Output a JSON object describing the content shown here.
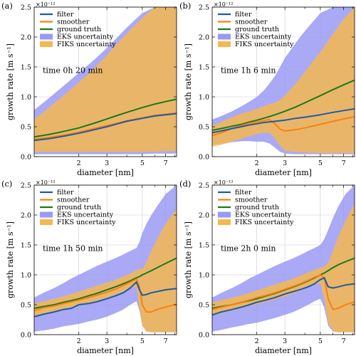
{
  "chart_data": [
    {
      "type": "line",
      "panel_label": "(a)",
      "annotation": "time 0h 20 min",
      "exponent_label": "×10⁻¹²",
      "xlabel": "diameter [nm]",
      "ylabel": "growth rate [m s⁻¹]",
      "xscale": "log",
      "xlim": [
        1.05,
        8.2
      ],
      "ylim": [
        0,
        2.5
      ],
      "x_ticks": [
        2,
        3,
        5,
        7
      ],
      "y_ticks": [
        "0.0",
        "0.5",
        "1.0",
        "1.5",
        "2.0",
        "2.5"
      ],
      "x": [
        1.05,
        1.3,
        1.6,
        2.0,
        2.5,
        3.0,
        3.5,
        4.0,
        5.0,
        6.0,
        7.0,
        8.2
      ],
      "series": [
        {
          "name": "filter",
          "color": "#1f5aa6",
          "values": [
            0.27,
            0.3,
            0.34,
            0.39,
            0.45,
            0.5,
            0.55,
            0.59,
            0.64,
            0.68,
            0.7,
            0.72
          ]
        },
        {
          "name": "smoother",
          "color": "#ff7f0e",
          "values": [
            0.29,
            0.32,
            0.36,
            0.41,
            0.47,
            0.52,
            0.56,
            0.6,
            0.65,
            0.69,
            0.71,
            0.73
          ]
        },
        {
          "name": "ground truth",
          "color": "#1a7a1a",
          "values": [
            0.33,
            0.37,
            0.42,
            0.48,
            0.56,
            0.63,
            0.69,
            0.74,
            0.82,
            0.88,
            0.92,
            0.96
          ]
        }
      ],
      "bands": [
        {
          "name": "EKS uncertainty",
          "color": "#9a9af5",
          "lower": [
            0.04,
            0.04,
            0.04,
            0.04,
            0.04,
            0.04,
            0.04,
            0.04,
            0.04,
            0.05,
            0.05,
            0.05
          ],
          "upper": [
            0.78,
            0.98,
            1.18,
            1.4,
            1.62,
            1.82,
            2.0,
            2.16,
            2.4,
            2.5,
            2.5,
            2.5
          ]
        },
        {
          "name": "FIKS uncertainty",
          "color": "#f5b850",
          "lower": [
            0.08,
            0.08,
            0.08,
            0.08,
            0.08,
            0.08,
            0.08,
            0.08,
            0.08,
            0.08,
            0.09,
            0.09
          ],
          "upper": [
            0.62,
            0.82,
            1.02,
            1.24,
            1.48,
            1.7,
            1.9,
            2.06,
            2.32,
            2.5,
            2.5,
            2.5
          ]
        }
      ]
    },
    {
      "type": "line",
      "panel_label": "(b)",
      "annotation": "time 1h 6 min",
      "exponent_label": "×10⁻¹²",
      "xlabel": "diameter [nm]",
      "ylabel": "growth rate [m s⁻¹]",
      "xscale": "log",
      "xlim": [
        1.05,
        8.2
      ],
      "ylim": [
        0,
        2.5
      ],
      "x_ticks": [
        2,
        3,
        5,
        7
      ],
      "y_ticks": [
        "0.0",
        "0.5",
        "1.0",
        "1.5",
        "2.0",
        "2.5"
      ],
      "x": [
        1.05,
        1.2,
        1.4,
        1.6,
        1.8,
        2.0,
        2.2,
        2.4,
        2.6,
        2.8,
        3.0,
        3.5,
        4.0,
        5.0,
        6.0,
        7.0,
        8.2
      ],
      "series": [
        {
          "name": "filter",
          "color": "#1f5aa6",
          "values": [
            0.4,
            0.43,
            0.47,
            0.5,
            0.53,
            0.55,
            0.57,
            0.58,
            0.59,
            0.6,
            0.61,
            0.64,
            0.66,
            0.7,
            0.74,
            0.77,
            0.8
          ]
        },
        {
          "name": "smoother",
          "color": "#ff7f0e",
          "values": [
            0.35,
            0.4,
            0.47,
            0.52,
            0.56,
            0.58,
            0.6,
            0.62,
            0.55,
            0.46,
            0.43,
            0.45,
            0.48,
            0.54,
            0.59,
            0.63,
            0.67
          ]
        },
        {
          "name": "ground truth",
          "color": "#1a7a1a",
          "values": [
            0.44,
            0.47,
            0.51,
            0.54,
            0.58,
            0.61,
            0.64,
            0.67,
            0.7,
            0.73,
            0.76,
            0.83,
            0.9,
            1.02,
            1.12,
            1.2,
            1.28
          ]
        }
      ],
      "bands": [
        {
          "name": "EKS uncertainty",
          "color": "#9a9af5",
          "lower": [
            0.2,
            0.22,
            0.24,
            0.26,
            0.26,
            0.25,
            0.25,
            0.22,
            0.15,
            0.08,
            0.05,
            0.04,
            0.04,
            0.04,
            0.04,
            0.04,
            0.04
          ],
          "upper": [
            0.62,
            0.68,
            0.76,
            0.84,
            0.92,
            1.0,
            1.1,
            1.22,
            1.35,
            1.5,
            1.65,
            1.9,
            2.1,
            2.4,
            2.5,
            2.5,
            2.5
          ]
        },
        {
          "name": "FIKS uncertainty",
          "color": "#f5b850",
          "lower": [
            0.17,
            0.2,
            0.25,
            0.3,
            0.34,
            0.38,
            0.4,
            0.4,
            0.3,
            0.18,
            0.1,
            0.08,
            0.07,
            0.06,
            0.06,
            0.06,
            0.06
          ],
          "upper": [
            0.52,
            0.58,
            0.66,
            0.72,
            0.76,
            0.8,
            0.84,
            0.88,
            0.9,
            0.95,
            1.02,
            1.22,
            1.42,
            1.75,
            2.05,
            2.3,
            2.5
          ]
        }
      ]
    },
    {
      "type": "line",
      "panel_label": "(c)",
      "annotation": "time 1h 50 min",
      "exponent_label": "×10⁻¹²",
      "xlabel": "diameter [nm]",
      "ylabel": "growth rate [m s⁻¹]",
      "xscale": "log",
      "xlim": [
        1.05,
        8.2
      ],
      "ylim": [
        0,
        2.5
      ],
      "x_ticks": [
        2,
        3,
        5,
        7
      ],
      "y_ticks": [
        "0.0",
        "0.5",
        "1.0",
        "1.5",
        "2.0",
        "2.5"
      ],
      "x": [
        1.05,
        1.2,
        1.4,
        1.6,
        1.8,
        2.0,
        2.3,
        2.6,
        3.0,
        3.4,
        3.8,
        4.2,
        4.6,
        4.8,
        5.0,
        5.3,
        5.7,
        6.2,
        7.0,
        8.2
      ],
      "series": [
        {
          "name": "filter",
          "color": "#1f5aa6",
          "values": [
            0.3,
            0.34,
            0.38,
            0.42,
            0.44,
            0.5,
            0.52,
            0.55,
            0.6,
            0.65,
            0.7,
            0.78,
            0.88,
            0.75,
            0.66,
            0.67,
            0.7,
            0.72,
            0.75,
            0.77
          ]
        },
        {
          "name": "smoother",
          "color": "#ff7f0e",
          "values": [
            0.4,
            0.45,
            0.48,
            0.52,
            0.55,
            0.58,
            0.62,
            0.66,
            0.71,
            0.76,
            0.82,
            0.88,
            0.93,
            0.8,
            0.5,
            0.38,
            0.38,
            0.42,
            0.46,
            0.51
          ]
        },
        {
          "name": "ground truth",
          "color": "#1a7a1a",
          "values": [
            0.44,
            0.47,
            0.5,
            0.54,
            0.57,
            0.6,
            0.65,
            0.69,
            0.75,
            0.8,
            0.85,
            0.9,
            0.95,
            0.97,
            1.0,
            1.03,
            1.07,
            1.12,
            1.19,
            1.28
          ]
        }
      ],
      "bands": [
        {
          "name": "EKS uncertainty",
          "color": "#9a9af5",
          "lower": [
            0.05,
            0.07,
            0.1,
            0.14,
            0.16,
            0.18,
            0.22,
            0.25,
            0.3,
            0.36,
            0.42,
            0.5,
            0.56,
            0.4,
            0.15,
            0.06,
            0.04,
            0.04,
            0.04,
            0.04
          ],
          "upper": [
            0.62,
            0.7,
            0.78,
            0.86,
            0.94,
            1.0,
            1.08,
            1.15,
            1.22,
            1.28,
            1.34,
            1.4,
            1.45,
            1.55,
            1.7,
            1.85,
            2.0,
            2.15,
            2.35,
            2.5
          ]
        },
        {
          "name": "FIKS uncertainty",
          "color": "#f5b850",
          "lower": [
            0.3,
            0.34,
            0.38,
            0.42,
            0.46,
            0.49,
            0.53,
            0.57,
            0.62,
            0.67,
            0.72,
            0.77,
            0.8,
            0.45,
            0.15,
            0.05,
            0.04,
            0.04,
            0.04,
            0.04
          ],
          "upper": [
            0.52,
            0.56,
            0.6,
            0.64,
            0.68,
            0.72,
            0.77,
            0.82,
            0.87,
            0.92,
            0.97,
            1.02,
            1.08,
            1.1,
            1.1,
            1.2,
            1.4,
            1.6,
            1.85,
            2.1
          ]
        }
      ]
    },
    {
      "type": "line",
      "panel_label": "(d)",
      "annotation": "time 2h 0 min",
      "exponent_label": "×10⁻¹²",
      "xlabel": "diameter [nm]",
      "ylabel": "growth rate [m s⁻¹]",
      "xscale": "log",
      "xlim": [
        1.05,
        8.2
      ],
      "ylim": [
        0,
        2.5
      ],
      "x_ticks": [
        2,
        3,
        5,
        7
      ],
      "y_ticks": [
        "0.0",
        "0.5",
        "1.0",
        "1.5",
        "2.0",
        "2.5"
      ],
      "x": [
        1.05,
        1.2,
        1.4,
        1.6,
        1.8,
        2.0,
        2.3,
        2.6,
        3.0,
        3.4,
        3.8,
        4.2,
        4.6,
        5.0,
        5.3,
        5.6,
        6.0,
        6.5,
        7.2,
        8.2
      ],
      "series": [
        {
          "name": "filter",
          "color": "#1f5aa6",
          "values": [
            0.33,
            0.38,
            0.42,
            0.46,
            0.5,
            0.54,
            0.58,
            0.62,
            0.68,
            0.72,
            0.76,
            0.8,
            0.85,
            0.92,
            0.95,
            0.8,
            0.78,
            0.8,
            0.83,
            0.85
          ]
        },
        {
          "name": "smoother",
          "color": "#ff7f0e",
          "values": [
            0.42,
            0.46,
            0.5,
            0.54,
            0.58,
            0.62,
            0.66,
            0.7,
            0.76,
            0.81,
            0.86,
            0.91,
            0.96,
            1.0,
            0.95,
            0.6,
            0.42,
            0.44,
            0.5,
            0.55
          ]
        },
        {
          "name": "ground truth",
          "color": "#1a7a1a",
          "values": [
            0.44,
            0.47,
            0.5,
            0.54,
            0.57,
            0.6,
            0.65,
            0.69,
            0.75,
            0.8,
            0.85,
            0.9,
            0.95,
            1.0,
            1.03,
            1.07,
            1.12,
            1.17,
            1.22,
            1.28
          ]
        }
      ],
      "bands": [
        {
          "name": "EKS uncertainty",
          "color": "#9a9af5",
          "lower": [
            0.05,
            0.08,
            0.12,
            0.15,
            0.18,
            0.2,
            0.24,
            0.28,
            0.33,
            0.38,
            0.44,
            0.5,
            0.56,
            0.6,
            0.45,
            0.15,
            0.05,
            0.04,
            0.04,
            0.04
          ],
          "upper": [
            0.62,
            0.7,
            0.78,
            0.86,
            0.94,
            1.0,
            1.08,
            1.15,
            1.22,
            1.28,
            1.34,
            1.4,
            1.45,
            1.5,
            1.6,
            1.75,
            1.95,
            2.15,
            2.35,
            2.5
          ]
        },
        {
          "name": "FIKS uncertainty",
          "color": "#f5b850",
          "lower": [
            0.32,
            0.36,
            0.4,
            0.44,
            0.48,
            0.51,
            0.55,
            0.59,
            0.64,
            0.69,
            0.74,
            0.79,
            0.84,
            0.86,
            0.6,
            0.2,
            0.06,
            0.04,
            0.04,
            0.04
          ],
          "upper": [
            0.54,
            0.58,
            0.62,
            0.66,
            0.7,
            0.74,
            0.79,
            0.84,
            0.89,
            0.94,
            0.99,
            1.04,
            1.08,
            1.12,
            1.14,
            1.2,
            1.4,
            1.65,
            1.9,
            2.2
          ]
        }
      ]
    }
  ]
}
